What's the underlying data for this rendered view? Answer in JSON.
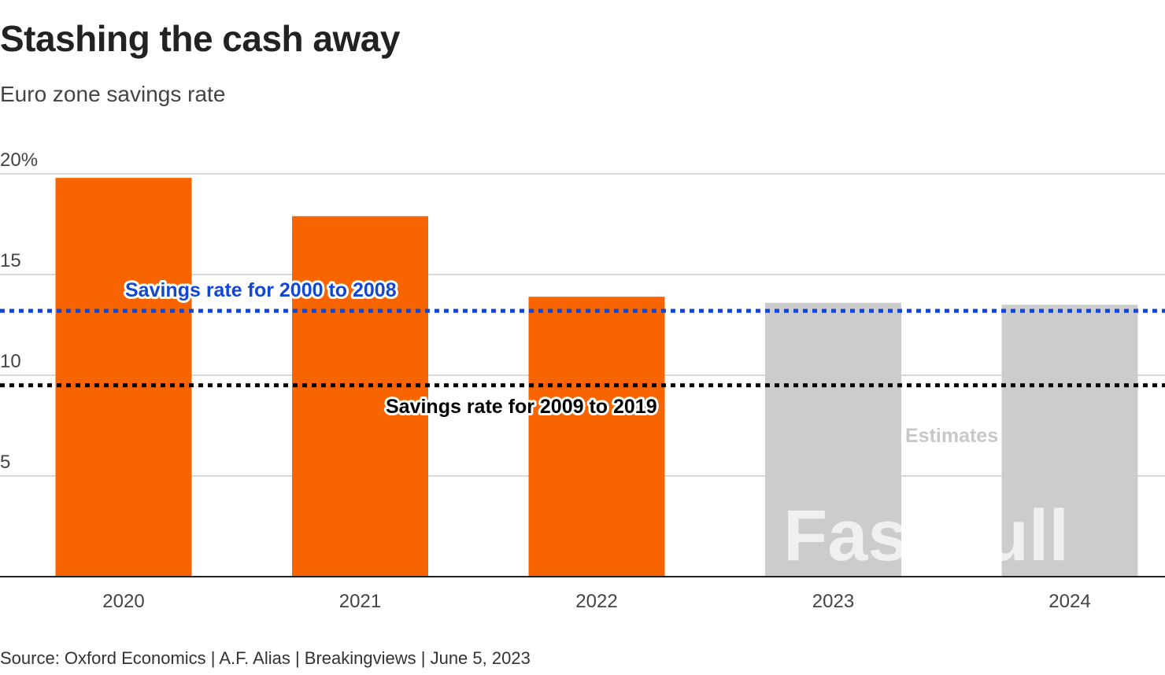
{
  "chart_data": {
    "type": "bar",
    "title": "Stashing the cash away",
    "subtitle": "Euro zone savings rate",
    "categories": [
      "2020",
      "2021",
      "2022",
      "2023",
      "2024"
    ],
    "values": [
      19.8,
      17.9,
      13.9,
      13.6,
      13.5
    ],
    "estimated": [
      false,
      false,
      false,
      true,
      true
    ],
    "ylim": [
      0,
      20
    ],
    "yticks": [
      5,
      10,
      15,
      20
    ],
    "ytick_labels": [
      "5",
      "10",
      "15",
      "20%"
    ],
    "grid": true,
    "reference_lines": [
      {
        "label": "Savings rate for 2000 to 2008",
        "value": 13.2,
        "color": "#1147d4"
      },
      {
        "label": "Savings rate for 2009 to 2019",
        "value": 9.5,
        "color": "#000000"
      }
    ],
    "annotations": [
      {
        "text": "Estimates"
      }
    ],
    "colors": {
      "actual": "#f76400",
      "estimate": "#cccccc",
      "grid": "#cccccc",
      "axis": "#222222"
    },
    "source": "Source: Oxford Economics | A.F. Alias | Breakingviews | June 5, 2023"
  },
  "watermark": "FastBull"
}
